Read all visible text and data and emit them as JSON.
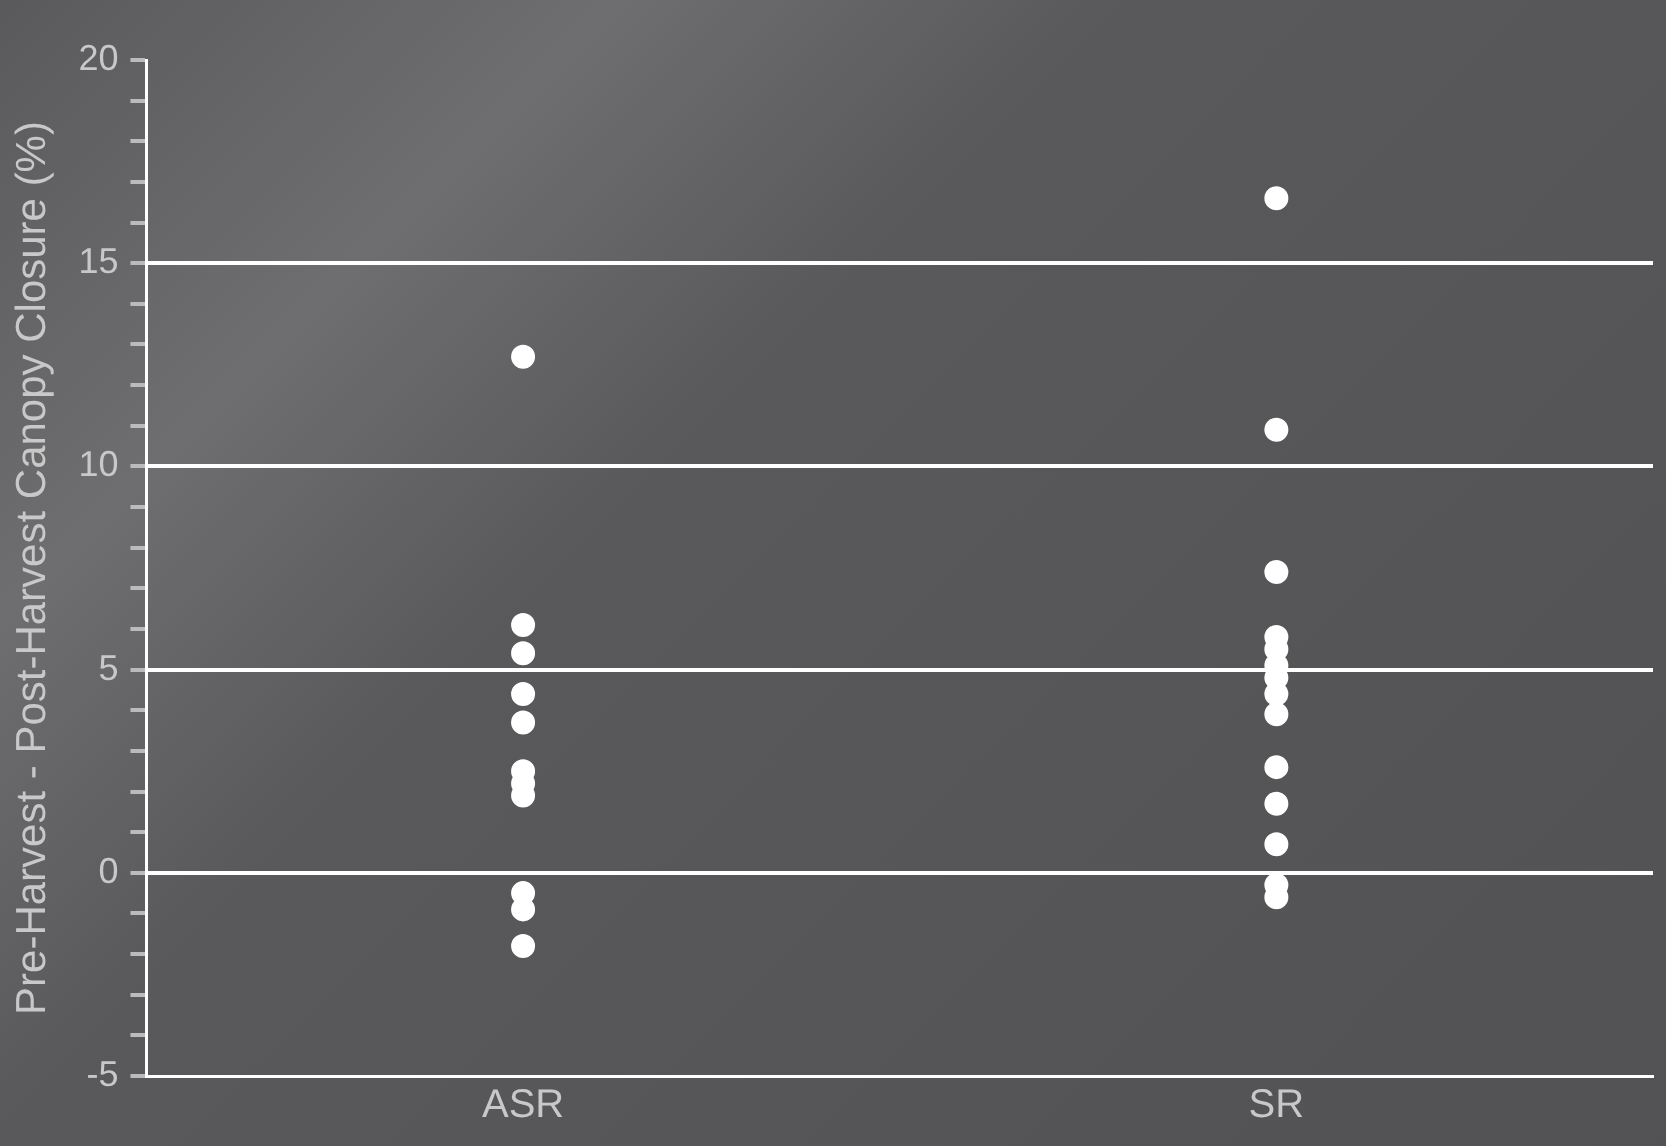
{
  "chart_data": {
    "type": "scatter",
    "ylabel": "Pre-Harvest - Post-Harvest Canopy Closure (%)",
    "categories": [
      "ASR",
      "SR"
    ],
    "series": [
      {
        "color": "#ffffff",
        "x": [
          "ASR",
          "ASR",
          "ASR",
          "ASR",
          "ASR",
          "ASR",
          "ASR",
          "ASR",
          "ASR",
          "ASR",
          "ASR",
          "SR",
          "SR",
          "SR",
          "SR",
          "SR",
          "SR",
          "SR",
          "SR",
          "SR",
          "SR",
          "SR",
          "SR",
          "SR",
          "SR"
        ],
        "values": [
          12.7,
          6.1,
          5.4,
          4.4,
          3.7,
          2.5,
          2.2,
          1.9,
          -0.5,
          -0.9,
          -1.8,
          16.6,
          10.9,
          7.4,
          5.8,
          5.5,
          5.1,
          4.8,
          4.4,
          3.9,
          2.6,
          1.7,
          0.7,
          -0.3,
          -0.6
        ]
      }
    ],
    "ylim": [
      -5,
      20
    ],
    "yticks": [
      -5,
      {
        "value": -4,
        "label": null
      },
      {
        "value": -3,
        "label": null
      },
      {
        "value": -2,
        "label": null
      },
      {
        "value": -1,
        "label": null
      },
      0,
      {
        "value": 1,
        "label": null
      },
      {
        "value": 2,
        "label": null
      },
      {
        "value": 3,
        "label": null
      },
      {
        "value": 4,
        "label": null
      },
      5,
      {
        "value": 6,
        "label": null
      },
      {
        "value": 7,
        "label": null
      },
      {
        "value": 8,
        "label": null
      },
      {
        "value": 9,
        "label": null
      },
      10,
      {
        "value": 11,
        "label": null
      },
      {
        "value": 12,
        "label": null
      },
      {
        "value": 13,
        "label": null
      },
      {
        "value": 14,
        "label": null
      },
      15,
      {
        "value": 16,
        "label": null
      },
      {
        "value": 17,
        "label": null
      },
      {
        "value": 18,
        "label": null
      },
      {
        "value": 19,
        "label": null
      },
      20
    ],
    "grid": "y",
    "marker": "circle",
    "legend": false
  }
}
